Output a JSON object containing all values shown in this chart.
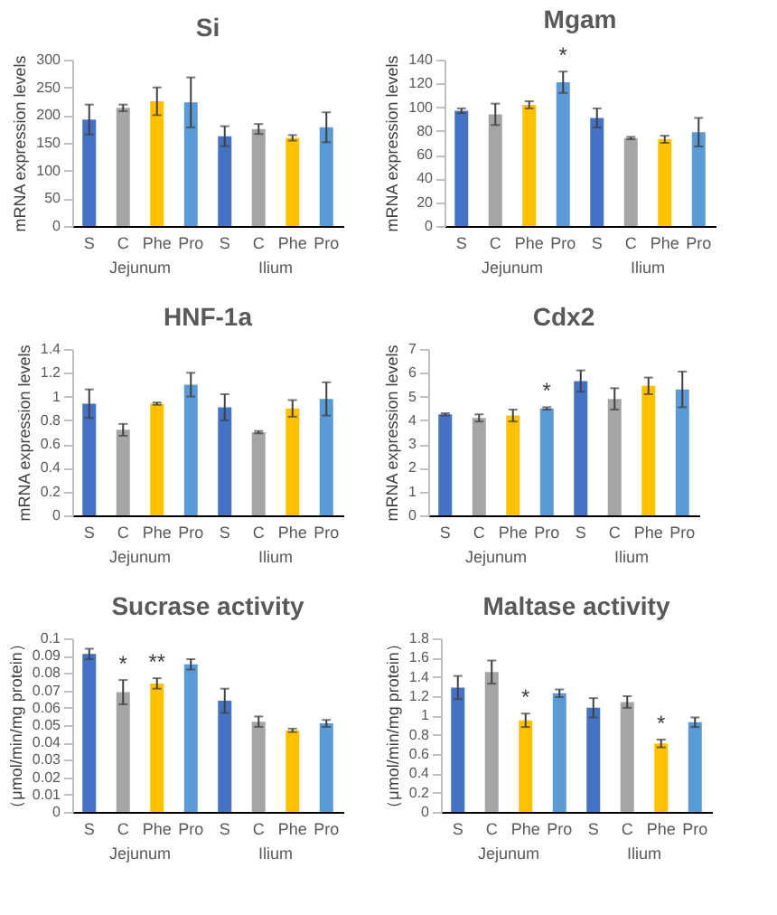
{
  "chart_data": [
    {
      "type": "bar",
      "title": "Si",
      "ylabel": "mRNA expression levels",
      "categories": [
        "S",
        "C",
        "Phe",
        "Pro",
        "S",
        "C",
        "Phe",
        "Pro"
      ],
      "colors": [
        "#4472c4",
        "#a5a5a5",
        "#ffc000",
        "#5b9bd5",
        "#4472c4",
        "#a5a5a5",
        "#ffc000",
        "#5b9bd5"
      ],
      "values": [
        192,
        213,
        225,
        223,
        162,
        175,
        159,
        178
      ],
      "errors": [
        27,
        6,
        25,
        45,
        18,
        9,
        5,
        27
      ],
      "ylim": [
        0,
        300
      ],
      "yticks": [
        0,
        50,
        100,
        150,
        200,
        250,
        300
      ],
      "annotations": [
        "Jejunum",
        "Ilium"
      ]
    },
    {
      "type": "bar",
      "title": "Mgam",
      "ylabel": "mRNA expression levels",
      "categories": [
        "S",
        "C",
        "Phe",
        "Pro",
        "S",
        "C",
        "Phe",
        "Pro"
      ],
      "colors": [
        "#4472c4",
        "#a5a5a5",
        "#ffc000",
        "#5b9bd5",
        "#4472c4",
        "#a5a5a5",
        "#ffc000",
        "#5b9bd5"
      ],
      "values": [
        97,
        94,
        102,
        121,
        91,
        74,
        73,
        79
      ],
      "errors": [
        2,
        9,
        3,
        9,
        8,
        1,
        3,
        12
      ],
      "value_labels": [
        null,
        null,
        null,
        "*",
        null,
        null,
        null,
        null
      ],
      "ylim": [
        0,
        140
      ],
      "yticks": [
        0,
        20,
        40,
        60,
        80,
        100,
        120,
        140
      ],
      "annotations": [
        "Jejunum",
        "Ilium"
      ]
    },
    {
      "type": "bar",
      "title": "HNF-1a",
      "ylabel": "mRNA expression levels",
      "categories": [
        "S",
        "C",
        "Phe",
        "Pro",
        "S",
        "C",
        "Phe",
        "Pro"
      ],
      "colors": [
        "#4472c4",
        "#a5a5a5",
        "#ffc000",
        "#5b9bd5",
        "#4472c4",
        "#a5a5a5",
        "#ffc000",
        "#5b9bd5"
      ],
      "values": [
        0.94,
        0.72,
        0.94,
        1.1,
        0.91,
        0.7,
        0.9,
        0.98
      ],
      "errors": [
        0.12,
        0.05,
        0.01,
        0.1,
        0.11,
        0.01,
        0.07,
        0.14
      ],
      "ylim": [
        0,
        1.4
      ],
      "yticks": [
        0,
        0.2,
        0.4,
        0.6,
        0.8,
        1,
        1.2,
        1.4
      ],
      "annotations": [
        "Jejunum",
        "Ilium"
      ]
    },
    {
      "type": "bar",
      "title": "Cdx2",
      "ylabel": "mRNA expression levels",
      "categories": [
        "S",
        "C",
        "Phe",
        "Pro",
        "S",
        "C",
        "Phe",
        "Pro"
      ],
      "colors": [
        "#4472c4",
        "#a5a5a5",
        "#ffc000",
        "#5b9bd5",
        "#4472c4",
        "#a5a5a5",
        "#ffc000",
        "#5b9bd5"
      ],
      "values": [
        4.25,
        4.1,
        4.2,
        4.5,
        5.65,
        4.9,
        5.45,
        5.3
      ],
      "errors": [
        0.05,
        0.15,
        0.25,
        0.05,
        0.45,
        0.45,
        0.35,
        0.75
      ],
      "value_labels": [
        null,
        null,
        null,
        "*",
        null,
        null,
        null,
        null
      ],
      "ylim": [
        0,
        7
      ],
      "yticks": [
        0,
        1,
        2,
        3,
        4,
        5,
        6,
        7
      ],
      "annotations": [
        "Jejunum",
        "Ilium"
      ]
    },
    {
      "type": "bar",
      "title": "Sucrase activity",
      "ylabel": "（μmol/min/mg protein）",
      "categories": [
        "S",
        "C",
        "Phe",
        "Pro",
        "S",
        "C",
        "Phe",
        "Pro"
      ],
      "colors": [
        "#4472c4",
        "#a5a5a5",
        "#ffc000",
        "#5b9bd5",
        "#4472c4",
        "#a5a5a5",
        "#ffc000",
        "#5b9bd5"
      ],
      "values": [
        0.091,
        0.069,
        0.074,
        0.085,
        0.064,
        0.052,
        0.047,
        0.051
      ],
      "errors": [
        0.003,
        0.007,
        0.003,
        0.003,
        0.007,
        0.003,
        0.001,
        0.002
      ],
      "value_labels": [
        null,
        "*",
        "**",
        null,
        null,
        null,
        null,
        null
      ],
      "ylim": [
        0,
        0.1
      ],
      "yticks": [
        0,
        0.01,
        0.02,
        0.03,
        0.04,
        0.05,
        0.06,
        0.07,
        0.08,
        0.09,
        0.1
      ],
      "annotations": [
        "Jejunum",
        "Ilium"
      ]
    },
    {
      "type": "bar",
      "title": "Maltase activity",
      "ylabel": "（μmol/min/mg protein）",
      "categories": [
        "S",
        "C",
        "Phe",
        "Pro",
        "S",
        "C",
        "Phe",
        "Pro"
      ],
      "colors": [
        "#4472c4",
        "#a5a5a5",
        "#ffc000",
        "#5b9bd5",
        "#4472c4",
        "#a5a5a5",
        "#ffc000",
        "#5b9bd5"
      ],
      "values": [
        1.29,
        1.45,
        0.95,
        1.23,
        1.08,
        1.14,
        0.71,
        0.93
      ],
      "errors": [
        0.12,
        0.12,
        0.07,
        0.04,
        0.1,
        0.06,
        0.04,
        0.05
      ],
      "value_labels": [
        null,
        null,
        "*",
        null,
        null,
        null,
        "*",
        null
      ],
      "ylim": [
        0,
        1.8
      ],
      "yticks": [
        0,
        0.2,
        0.4,
        0.6,
        0.8,
        1,
        1.2,
        1.4,
        1.6,
        1.8
      ],
      "annotations": [
        "Jejunum",
        "Ilium"
      ]
    }
  ]
}
